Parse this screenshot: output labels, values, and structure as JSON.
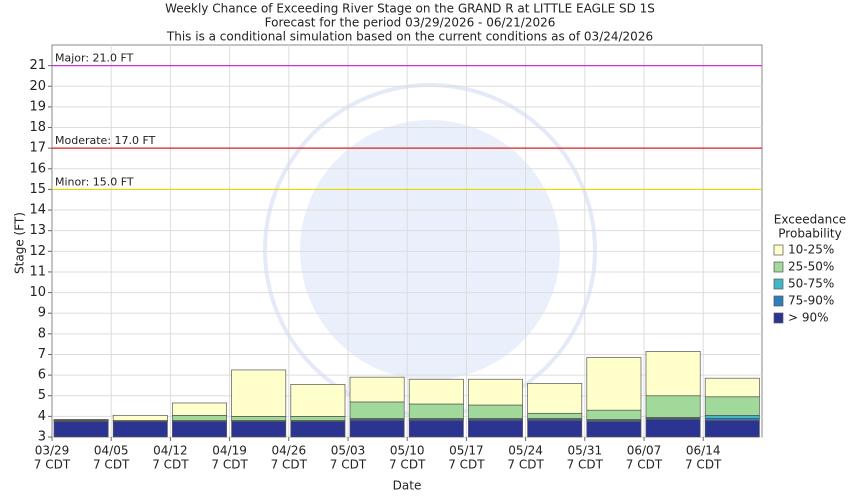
{
  "chart_data": {
    "type": "bar",
    "title": [
      "Weekly Chance of Exceeding River Stage on the GRAND R at LITTLE EAGLE SD 1S",
      "Forecast for the period 03/29/2026 - 06/21/2026",
      "This is a conditional simulation based on the current conditions as of 03/24/2026"
    ],
    "x_label": "Date",
    "y_label": "Stage (FT)",
    "legend_title": [
      "Exceedance",
      "Probability"
    ],
    "categories": [
      "03/29",
      "04/05",
      "04/12",
      "04/19",
      "04/26",
      "05/03",
      "05/10",
      "05/17",
      "05/24",
      "05/31",
      "06/07",
      "06/14"
    ],
    "category_times": [
      "7 CDT",
      "7 CDT",
      "7 CDT",
      "7 CDT",
      "7 CDT",
      "7 CDT",
      "7 CDT",
      "7 CDT",
      "7 CDT",
      "7 CDT",
      "7 CDT",
      "7 CDT"
    ],
    "series": [
      {
        "name": "> 90%",
        "color": "#2b3591",
        "values": [
          3.75,
          3.75,
          3.75,
          3.75,
          3.75,
          3.8,
          3.8,
          3.8,
          3.8,
          3.75,
          3.85,
          3.8
        ]
      },
      {
        "name": "75-90%",
        "color": "#2c7fb8",
        "values": [
          3.78,
          3.77,
          3.78,
          3.78,
          3.78,
          3.85,
          3.85,
          3.85,
          3.85,
          3.8,
          3.9,
          3.9
        ]
      },
      {
        "name": "50-75%",
        "color": "#41b6c4",
        "values": [
          3.8,
          3.78,
          3.8,
          3.8,
          3.8,
          3.9,
          3.9,
          3.9,
          3.9,
          3.85,
          3.95,
          4.05
        ]
      },
      {
        "name": "25-50%",
        "color": "#a1d99b",
        "values": [
          3.82,
          3.8,
          4.05,
          4.0,
          4.0,
          4.7,
          4.6,
          4.55,
          4.15,
          4.3,
          5.0,
          4.95
        ]
      },
      {
        "name": "10-25%",
        "color": "#ffffcc",
        "values": [
          3.85,
          4.05,
          4.65,
          6.25,
          5.55,
          5.9,
          5.8,
          5.8,
          5.6,
          6.85,
          7.15,
          5.85
        ]
      }
    ],
    "flood_stages": [
      {
        "label": "Major: 21.0 FT",
        "value": 21,
        "color": "#cc33cc"
      },
      {
        "label": "Moderate: 17.0 FT",
        "value": 17,
        "color": "#dd2222"
      },
      {
        "label": "Minor: 15.0 FT",
        "value": 15,
        "color": "#e6d800"
      }
    ],
    "ylim": [
      3,
      22
    ],
    "yticks": [
      3,
      4,
      5,
      6,
      7,
      8,
      9,
      10,
      11,
      12,
      13,
      14,
      15,
      16,
      17,
      18,
      19,
      20,
      21
    ],
    "grid": true
  }
}
